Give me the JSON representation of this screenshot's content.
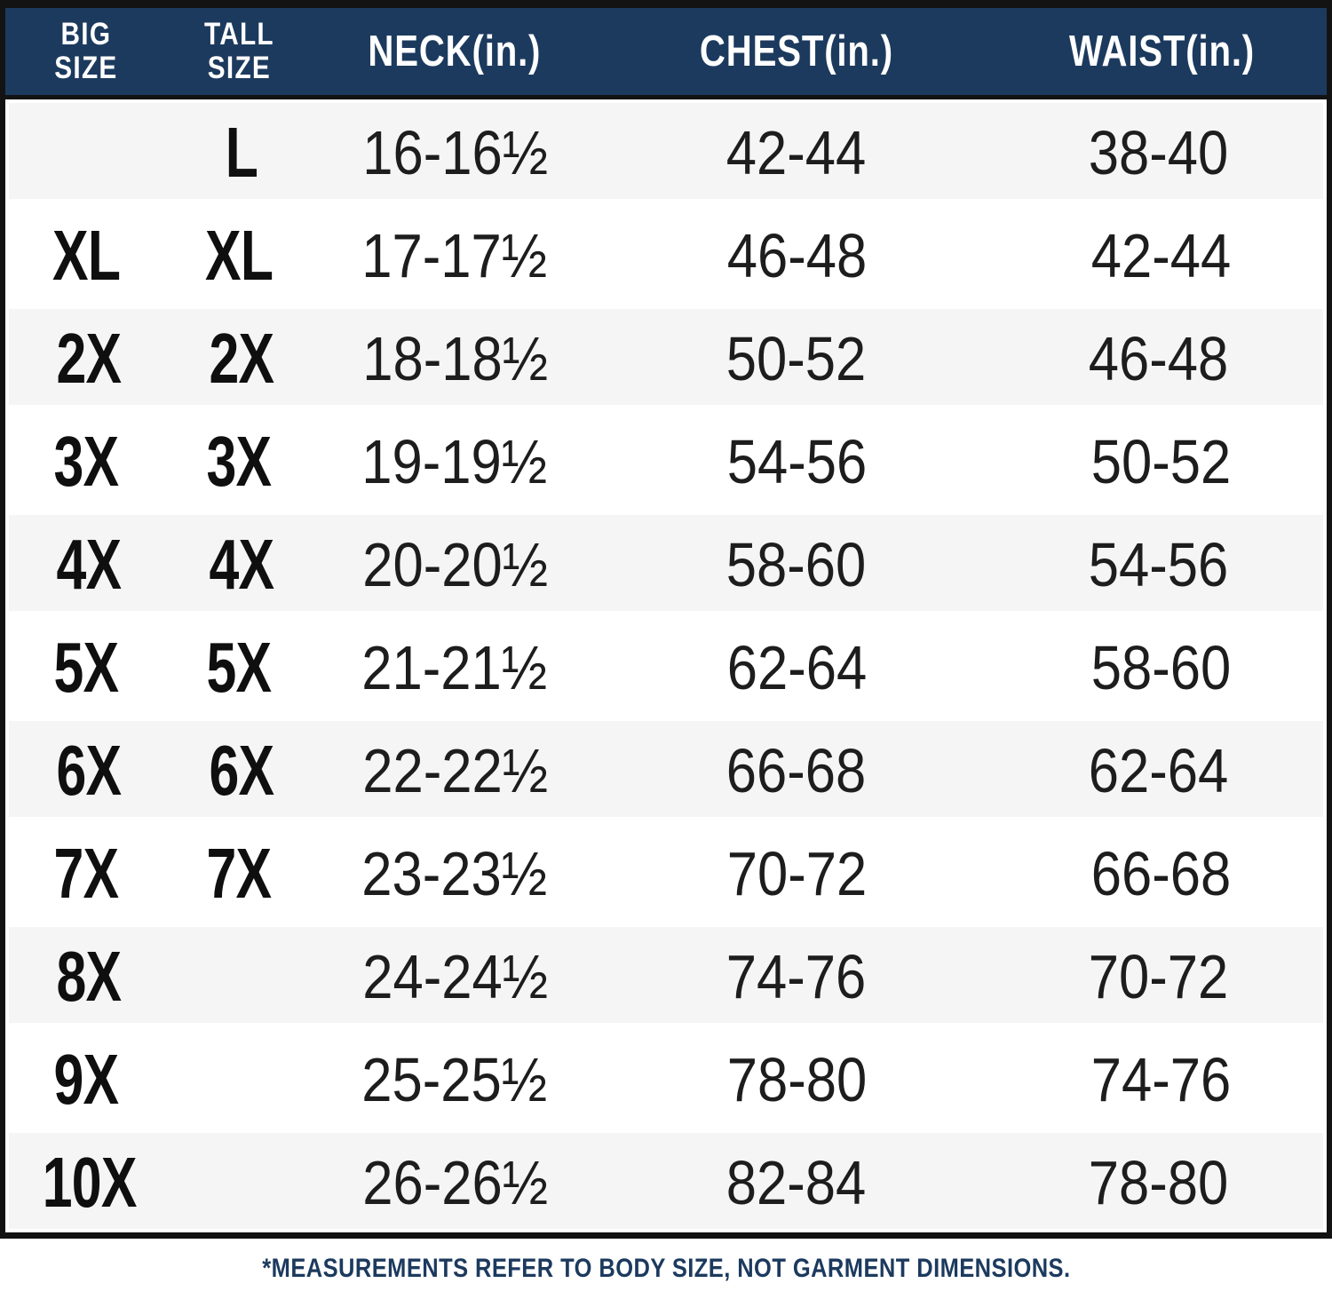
{
  "chart_data": {
    "type": "table",
    "columns": [
      "BIG SIZE",
      "TALL SIZE",
      "NECK(in.)",
      "CHEST(in.)",
      "WAIST(in.)"
    ],
    "rows": [
      [
        "",
        "L",
        "16-16½",
        "42-44",
        "38-40"
      ],
      [
        "XL",
        "XL",
        "17-17½",
        "46-48",
        "42-44"
      ],
      [
        "2X",
        "2X",
        "18-18½",
        "50-52",
        "46-48"
      ],
      [
        "3X",
        "3X",
        "19-19½",
        "54-56",
        "50-52"
      ],
      [
        "4X",
        "4X",
        "20-20½",
        "58-60",
        "54-56"
      ],
      [
        "5X",
        "5X",
        "21-21½",
        "62-64",
        "58-60"
      ],
      [
        "6X",
        "6X",
        "22-22½",
        "66-68",
        "62-64"
      ],
      [
        "7X",
        "7X",
        "23-23½",
        "70-72",
        "66-68"
      ],
      [
        "8X",
        "",
        "24-24½",
        "74-76",
        "70-72"
      ],
      [
        "9X",
        "",
        "25-25½",
        "78-80",
        "74-76"
      ],
      [
        "10X",
        "",
        "26-26½",
        "82-84",
        "78-80"
      ]
    ],
    "footnote": "*MEASUREMENTS REFER TO BODY SIZE, NOT GARMENT DIMENSIONS.",
    "layout": {
      "header_position": "top",
      "alternating_rows": true
    }
  },
  "header": {
    "col1_line1": "BIG",
    "col1_line2": "SIZE",
    "col2_line1": "TALL",
    "col2_line2": "SIZE",
    "col3": "NECK(in.)",
    "col4": "CHEST(in.)",
    "col5": "WAIST(in.)"
  },
  "colors": {
    "header_bg": "#1c3a5e",
    "header_text": "#ffffff",
    "frame_border": "#131313",
    "row_bg": "#ffffff",
    "row_alt_bg": "#f5f5f6",
    "cell_text": "#1d1d1d",
    "size_label_text": "#0f0f0f",
    "footnote_text": "#1c3a5e"
  }
}
